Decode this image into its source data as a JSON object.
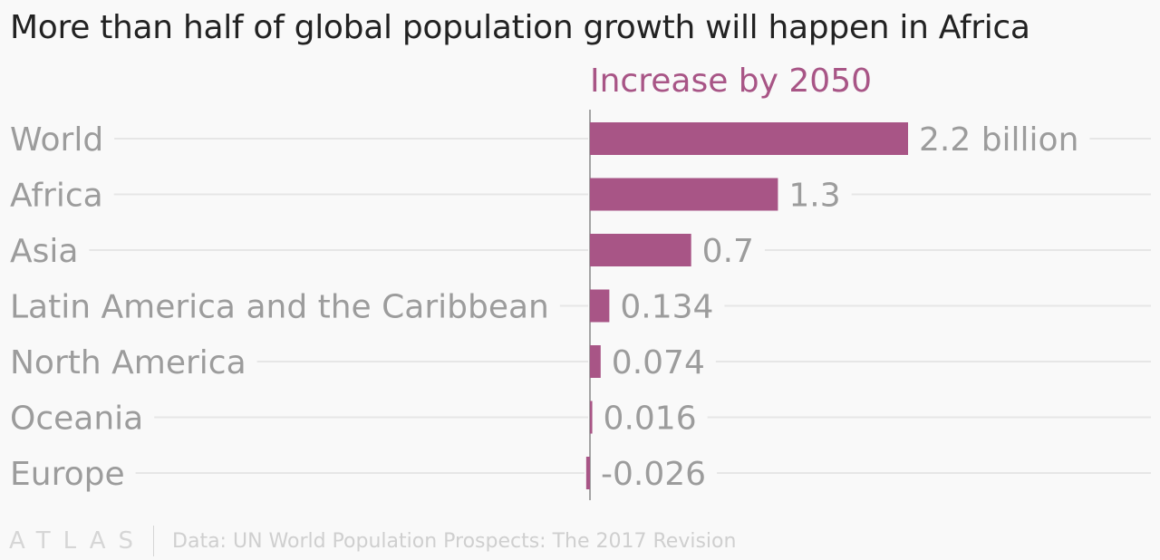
{
  "title": "More than half of global population growth will happen in Africa",
  "footer": {
    "logo": "ATLAS",
    "source": "Data: UN World Population Prospects: The 2017 Revision"
  },
  "colors": {
    "bar": "#a85586",
    "gridline": "#e6e6e6",
    "axis": "#888888",
    "label": "#9c9c9c"
  },
  "chart_data": {
    "type": "bar",
    "orientation": "horizontal",
    "series": [
      {
        "name": "Increase by 2050",
        "values": [
          2.2,
          1.3,
          0.7,
          0.134,
          0.074,
          0.016,
          -0.026
        ]
      }
    ],
    "categories": [
      "World",
      "Africa",
      "Asia",
      "Latin America and the Caribbean",
      "North America",
      "Oceania",
      "Europe"
    ],
    "value_labels": [
      "2.2 billion",
      "1.3",
      "0.7",
      "0.134",
      "0.074",
      "0.016",
      "-0.026"
    ],
    "xlim": [
      -0.026,
      2.2
    ],
    "grid": true,
    "legend": "top"
  }
}
